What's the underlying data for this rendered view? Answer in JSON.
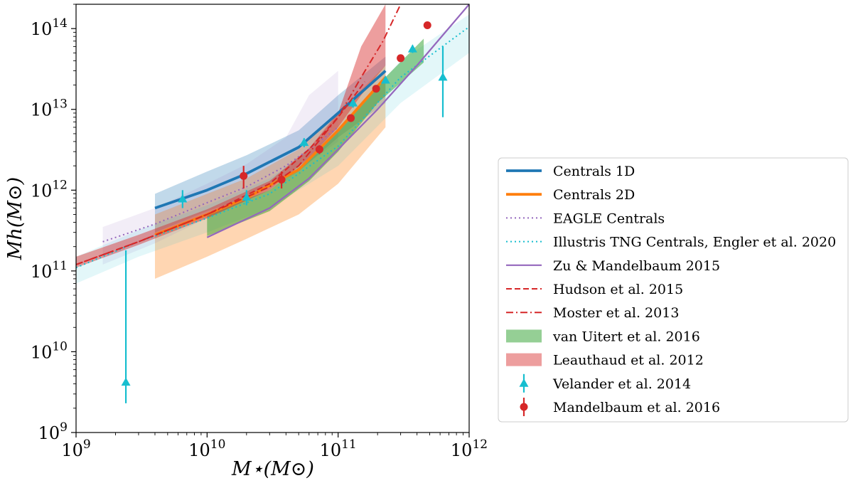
{
  "chart_data": {
    "type": "line",
    "xlabel": "M⋆(M⊙)",
    "ylabel": "Mh(M⊙)",
    "xscale": "log",
    "yscale": "log",
    "xlim": [
      1000000000.0,
      1000000000000.0
    ],
    "ylim": [
      1000000000.0,
      200000000000000.0
    ],
    "x_tick_labels": [
      "10^9",
      "10^10",
      "10^11",
      "10^12"
    ],
    "y_tick_labels": [
      "10^9",
      "10^10",
      "10^11",
      "10^12",
      "10^13",
      "10^14"
    ],
    "grid": false,
    "legend_position": "outside-right",
    "series": [
      {
        "name": "Centrals 1D",
        "kind": "line",
        "style": "solid-thick",
        "color": "#1f77b4",
        "x": [
          4000000000.0,
          10000000000.0,
          20000000000.0,
          50000000000.0,
          100000000000.0,
          230000000000.0
        ],
        "y": [
          600000000000.0,
          1000000000000.0,
          1600000000000.0,
          3400000000000.0,
          9000000000000.0,
          30000000000000.0
        ],
        "band_lo": [
          300000000000.0,
          550000000000.0,
          800000000000.0,
          1700000000000.0,
          4500000000000.0,
          12000000000000.0
        ],
        "band_hi": [
          900000000000.0,
          1700000000000.0,
          2700000000000.0,
          5500000000000.0,
          15000000000000.0,
          45000000000000.0
        ]
      },
      {
        "name": "Centrals 2D",
        "kind": "line",
        "style": "solid-thick",
        "color": "#ff7f0e",
        "x": [
          4000000000.0,
          10000000000.0,
          20000000000.0,
          50000000000.0,
          100000000000.0,
          230000000000.0
        ],
        "y": [
          280000000000.0,
          500000000000.0,
          800000000000.0,
          1800000000000.0,
          5500000000000.0,
          25000000000000.0
        ],
        "band_lo": [
          80000000000.0,
          150000000000.0,
          250000000000.0,
          500000000000.0,
          1200000000000.0,
          6000000000000.0
        ],
        "band_hi": [
          500000000000.0,
          900000000000.0,
          1400000000000.0,
          3200000000000.0,
          9000000000000.0,
          35000000000000.0
        ]
      },
      {
        "name": "EAGLE Centrals",
        "kind": "line",
        "style": "dotted",
        "color": "#9467bd",
        "x": [
          1600000000.0,
          4000000000.0,
          10000000000.0,
          20000000000.0,
          40000000000.0,
          60000000000.0,
          100000000000.0
        ],
        "y": [
          230000000000.0,
          380000000000.0,
          700000000000.0,
          1100000000000.0,
          2000000000000.0,
          3200000000000.0,
          6000000000000.0
        ],
        "band_lo": [
          120000000000.0,
          220000000000.0,
          450000000000.0,
          750000000000.0,
          1300000000000.0,
          2200000000000.0,
          4000000000000.0
        ],
        "band_hi": [
          350000000000.0,
          600000000000.0,
          1200000000000.0,
          2100000000000.0,
          4500000000000.0,
          15000000000000.0,
          30000000000000.0
        ]
      },
      {
        "name": "Illustris TNG Centrals, Engler et al. 2020",
        "kind": "line",
        "style": "dotted",
        "color": "#17becf",
        "x": [
          1000000000.0,
          3000000000.0,
          10000000000.0,
          30000000000.0,
          100000000000.0,
          300000000000.0,
          1000000000000.0
        ],
        "y": [
          110000000000.0,
          230000000000.0,
          450000000000.0,
          900000000000.0,
          3500000000000.0,
          25000000000000.0,
          105000000000000.0
        ],
        "band_lo": [
          70000000000.0,
          150000000000.0,
          300000000000.0,
          600000000000.0,
          2000000000000.0,
          12000000000000.0,
          50000000000000.0
        ],
        "band_hi": [
          150000000000.0,
          320000000000.0,
          650000000000.0,
          1400000000000.0,
          5500000000000.0,
          40000000000000.0,
          150000000000000.0
        ]
      },
      {
        "name": "Zu & Mandelbaum 2015",
        "kind": "line",
        "style": "solid",
        "color": "#9467bd",
        "x": [
          10000000000.0,
          30000000000.0,
          60000000000.0,
          100000000000.0,
          200000000000.0,
          400000000000.0,
          1000000000000.0
        ],
        "y": [
          260000000000.0,
          600000000000.0,
          1400000000000.0,
          3200000000000.0,
          10000000000000.0,
          35000000000000.0,
          200000000000000.0
        ]
      },
      {
        "name": "Hudson et al. 2015",
        "kind": "line",
        "style": "dashed",
        "color": "#d62728",
        "x": [
          1000000000.0,
          3000000000.0,
          10000000000.0,
          30000000000.0,
          60000000000.0,
          100000000000.0,
          160000000000.0
        ],
        "y": [
          120000000000.0,
          230000000000.0,
          500000000000.0,
          1200000000000.0,
          3200000000000.0,
          8000000000000.0,
          22000000000000.0
        ]
      },
      {
        "name": "Moster et al. 2013",
        "kind": "line",
        "style": "dashdot",
        "color": "#d62728",
        "x": [
          1000000000.0,
          3000000000.0,
          10000000000.0,
          30000000000.0,
          50000000000.0,
          100000000000.0,
          150000000000.0,
          220000000000.0,
          300000000000.0
        ],
        "y": [
          120000000000.0,
          230000000000.0,
          500000000000.0,
          1100000000000.0,
          2000000000000.0,
          8000000000000.0,
          25000000000000.0,
          70000000000000.0,
          200000000000000.0
        ]
      },
      {
        "name": "van Uitert et al. 2016",
        "kind": "band",
        "color": "#2ca02c",
        "x": [
          10000000000.0,
          30000000000.0,
          60000000000.0,
          100000000000.0,
          200000000000.0,
          450000000000.0
        ],
        "lo": [
          270000000000.0,
          550000000000.0,
          1300000000000.0,
          3000000000000.0,
          12000000000000.0,
          38000000000000.0
        ],
        "hi": [
          500000000000.0,
          1000000000000.0,
          2400000000000.0,
          5500000000000.0,
          20000000000000.0,
          75000000000000.0
        ]
      },
      {
        "name": "Leauthaud et al. 2012",
        "kind": "band",
        "color": "#d62728",
        "x": [
          1000000000.0,
          3000000000.0,
          10000000000.0,
          30000000000.0,
          60000000000.0,
          100000000000.0,
          150000000000.0,
          230000000000.0
        ],
        "lo": [
          110000000000.0,
          210000000000.0,
          450000000000.0,
          1000000000000.0,
          2500000000000.0,
          6000000000000.0,
          15000000000000.0,
          35000000000000.0
        ],
        "hi": [
          150000000000.0,
          280000000000.0,
          580000000000.0,
          1300000000000.0,
          3300000000000.0,
          9000000000000.0,
          60000000000000.0,
          200000000000000.0
        ]
      },
      {
        "name": "Velander et al. 2014",
        "kind": "points",
        "marker": "triangle",
        "color": "#17becf",
        "points": [
          {
            "x": 2400000000.0,
            "y": 4200000000.0,
            "lo": 2300000000.0,
            "hi": 180000000000.0
          },
          {
            "x": 6500000000.0,
            "y": 780000000000.0,
            "lo": 600000000000.0,
            "hi": 1000000000000.0
          },
          {
            "x": 20000000000.0,
            "y": 820000000000.0,
            "lo": 650000000000.0,
            "hi": 1000000000000.0
          },
          {
            "x": 55000000000.0,
            "y": 3900000000000.0,
            "lo": 3400000000000.0,
            "hi": 4400000000000.0
          },
          {
            "x": 130000000000.0,
            "y": 12000000000000.0,
            "lo": 10500000000000.0,
            "hi": 13500000000000.0
          },
          {
            "x": 230000000000.0,
            "y": 23000000000000.0,
            "lo": 21000000000000.0,
            "hi": 25000000000000.0
          },
          {
            "x": 370000000000.0,
            "y": 56000000000000.0,
            "lo": 50000000000000.0,
            "hi": 62000000000000.0
          },
          {
            "x": 630000000000.0,
            "y": 25000000000000.0,
            "lo": 8000000000000.0,
            "hi": 60000000000000.0
          }
        ]
      },
      {
        "name": "Mandelbaum et al. 2016",
        "kind": "points",
        "marker": "circle",
        "color": "#d62728",
        "points": [
          {
            "x": 19000000000.0,
            "y": 1500000000000.0,
            "lo": 1050000000000.0,
            "hi": 2000000000000.0
          },
          {
            "x": 37000000000.0,
            "y": 1350000000000.0,
            "lo": 1050000000000.0,
            "hi": 1700000000000.0
          },
          {
            "x": 72000000000.0,
            "y": 3200000000000.0,
            "lo": 2800000000000.0,
            "hi": 3600000000000.0
          },
          {
            "x": 125000000000.0,
            "y": 7800000000000.0,
            "lo": 7000000000000.0,
            "hi": 8600000000000.0
          },
          {
            "x": 195000000000.0,
            "y": 18000000000000.0,
            "lo": 16500000000000.0,
            "hi": 19500000000000.0
          },
          {
            "x": 300000000000.0,
            "y": 43000000000000.0,
            "lo": 40000000000000.0,
            "hi": 46000000000000.0
          },
          {
            "x": 480000000000.0,
            "y": 110000000000000.0,
            "lo": 102000000000000.0,
            "hi": 118000000000000.0
          }
        ]
      }
    ],
    "legend": [
      {
        "label": "Centrals 1D",
        "series": 0
      },
      {
        "label": "Centrals 2D",
        "series": 1
      },
      {
        "label": "EAGLE Centrals",
        "series": 2
      },
      {
        "label": "Illustris TNG Centrals,  Engler et al. 2020",
        "series": 3
      },
      {
        "label": "Zu & Mandelbaum 2015",
        "series": 4
      },
      {
        "label": "Hudson et al. 2015",
        "series": 5
      },
      {
        "label": "Moster et al. 2013",
        "series": 6
      },
      {
        "label": "van Uitert et al. 2016",
        "series": 7
      },
      {
        "label": "Leauthaud et al. 2012",
        "series": 8
      },
      {
        "label": "Velander et al. 2014",
        "series": 9
      },
      {
        "label": "Mandelbaum et al. 2016",
        "series": 10
      }
    ]
  }
}
